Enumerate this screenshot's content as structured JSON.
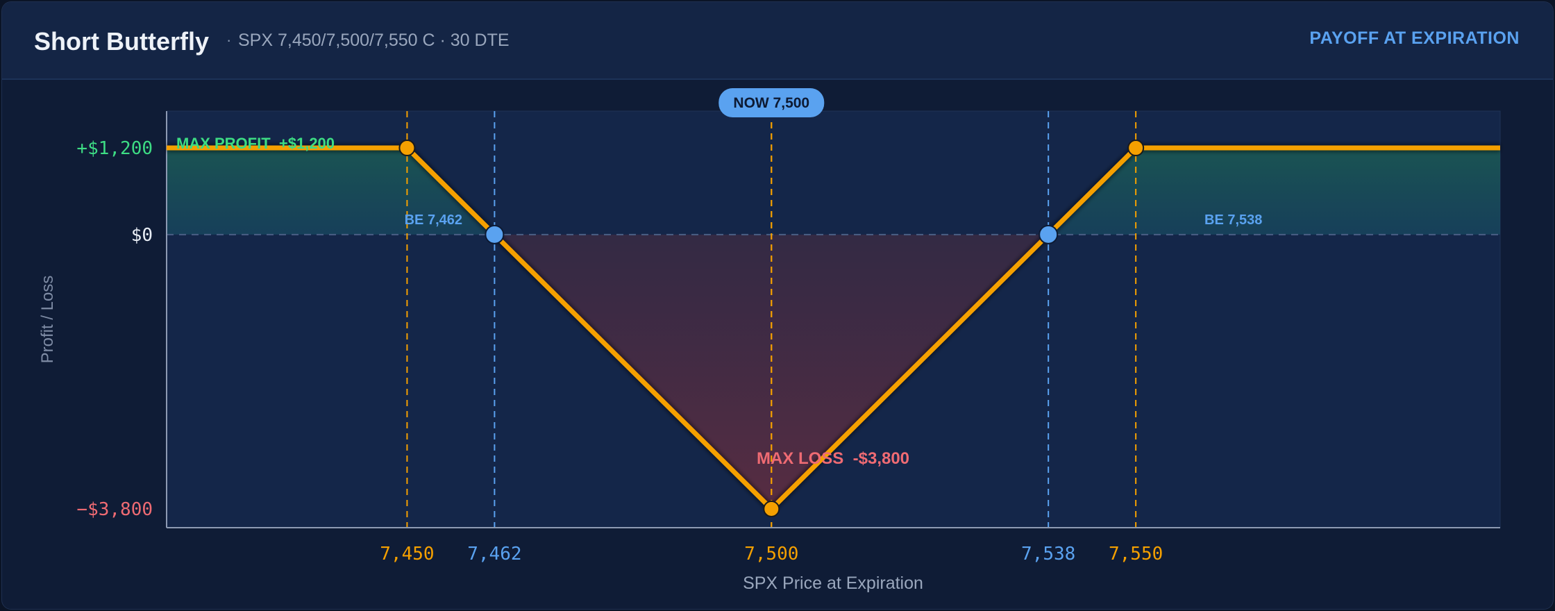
{
  "header": {
    "title": "Short Butterfly",
    "separator": "·",
    "subtitle": "SPX 7,450/7,500/7,550 C · 30 DTE",
    "tag": "PAYOFF AT EXPIRATION"
  },
  "colors": {
    "payoff": "#f5a000",
    "breakeven": "#5aa2f0",
    "profit": "#3ddc84",
    "loss": "#ef6b73",
    "zero_line": "#4a5f85"
  },
  "chart_data": {
    "type": "line",
    "xlabel": "SPX Price at Expiration",
    "ylabel": "Profit / Loss",
    "xlim": [
      7417,
      7600
    ],
    "ylim": [
      -4060,
      1710
    ],
    "grid": false,
    "series": [
      {
        "x": [
          7417,
          7450,
          7462,
          7500,
          7538,
          7550,
          7600
        ],
        "y": [
          1200,
          1200,
          0,
          -3800,
          0,
          1200,
          1200
        ]
      }
    ],
    "strikes": [
      7450,
      7500,
      7550
    ],
    "breakevens": [
      7462,
      7538
    ],
    "current_price": 7500,
    "x_ticks": [
      {
        "value": 7450,
        "label": "7,450",
        "kind": "strike"
      },
      {
        "value": 7462,
        "label": "7,462",
        "kind": "breakeven"
      },
      {
        "value": 7500,
        "label": "7,500",
        "kind": "strike"
      },
      {
        "value": 7538,
        "label": "7,538",
        "kind": "breakeven"
      },
      {
        "value": 7550,
        "label": "7,550",
        "kind": "strike"
      }
    ],
    "y_ticks": [
      {
        "value": 1200,
        "label": "+$1,200",
        "kind": "profit"
      },
      {
        "value": 0,
        "label": "$0",
        "kind": "zero"
      },
      {
        "value": -3800,
        "label": "−$3,800",
        "kind": "loss"
      }
    ],
    "annotations": {
      "now": "NOW 7,500",
      "max_profit": "MAX PROFIT  +$1,200",
      "max_loss": "MAX LOSS  -$3,800",
      "be_left": "BE 7,462",
      "be_right": "BE 7,538"
    }
  }
}
